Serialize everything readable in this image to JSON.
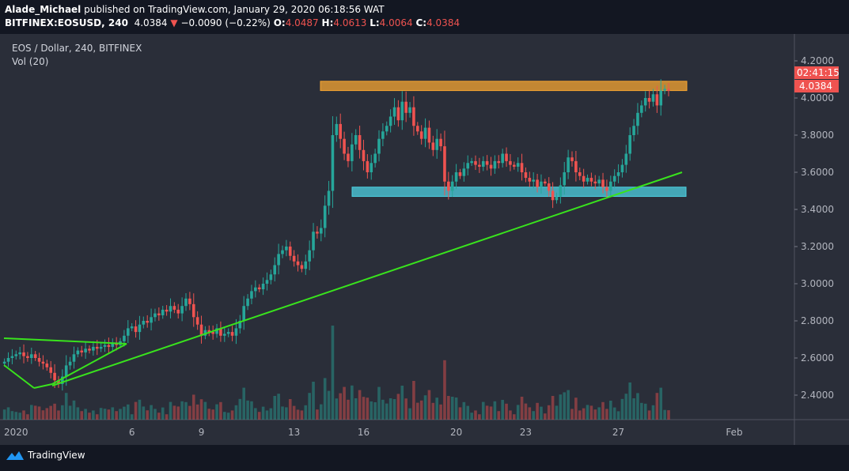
{
  "header": {
    "author": "Alade_Michael",
    "published": "published on TradingView.com, January 29, 2020 06:18:56 WAT",
    "symbol": "BITFINEX:EOSUSD, 240",
    "last": "4.0384",
    "change": "−0.0090 (−0.22%)",
    "o_label": "O:",
    "o": "4.0487",
    "h_label": "H:",
    "h": "4.0613",
    "l_label": "L:",
    "l": "4.0064",
    "c_label": "C:",
    "c": "4.0384"
  },
  "legend": {
    "title": "EOS / Dollar, 240, BITFINEX",
    "vol": "Vol (20)"
  },
  "brand": "TradingView",
  "colors": {
    "up": "#26a69a",
    "down": "#ef5350",
    "zone_top": "#f7a531",
    "zone_bottom": "#4dd0e1",
    "trend": "#39e31d",
    "bg": "#2a2e39"
  },
  "chart_data": {
    "type": "candlestick",
    "interval": "240",
    "y_ticks": [
      "4.2000",
      "4.0000",
      "3.8000",
      "3.6000",
      "3.4000",
      "3.2000",
      "3.0000",
      "2.8000",
      "2.6000",
      "2.4000"
    ],
    "ylim": [
      2.26,
      4.32
    ],
    "x_ticks": [
      {
        "label": "2020",
        "day": 1
      },
      {
        "label": "6",
        "day": 6
      },
      {
        "label": "9",
        "day": 9
      },
      {
        "label": "13",
        "day": 13
      },
      {
        "label": "16",
        "day": 16
      },
      {
        "label": "20",
        "day": 20
      },
      {
        "label": "23",
        "day": 23
      },
      {
        "label": "27",
        "day": 27
      },
      {
        "label": "Feb",
        "day": 32
      }
    ],
    "price_tag": "4.0384",
    "countdown": "02:41:15",
    "resistance_zone": [
      4.04,
      4.09
    ],
    "support_zone": [
      3.47,
      3.52
    ],
    "closes": [
      2.58,
      2.6,
      2.61,
      2.62,
      2.63,
      2.61,
      2.6,
      2.62,
      2.6,
      2.58,
      2.57,
      2.55,
      2.52,
      2.48,
      2.46,
      2.5,
      2.56,
      2.58,
      2.62,
      2.64,
      2.63,
      2.65,
      2.64,
      2.66,
      2.65,
      2.66,
      2.67,
      2.66,
      2.68,
      2.67,
      2.69,
      2.72,
      2.76,
      2.77,
      2.74,
      2.78,
      2.8,
      2.79,
      2.82,
      2.84,
      2.83,
      2.86,
      2.85,
      2.88,
      2.86,
      2.84,
      2.88,
      2.92,
      2.89,
      2.82,
      2.78,
      2.72,
      2.75,
      2.74,
      2.73,
      2.76,
      2.72,
      2.73,
      2.74,
      2.72,
      2.76,
      2.8,
      2.88,
      2.92,
      2.96,
      2.98,
      2.97,
      3.0,
      3.02,
      3.05,
      3.1,
      3.16,
      3.18,
      3.2,
      3.15,
      3.12,
      3.1,
      3.08,
      3.12,
      3.18,
      3.28,
      3.27,
      3.3,
      3.42,
      3.5,
      3.8,
      3.86,
      3.78,
      3.7,
      3.66,
      3.75,
      3.8,
      3.72,
      3.66,
      3.6,
      3.65,
      3.7,
      3.78,
      3.82,
      3.85,
      3.9,
      3.95,
      3.88,
      3.98,
      3.92,
      3.95,
      3.85,
      3.82,
      3.78,
      3.84,
      3.76,
      3.72,
      3.78,
      3.74,
      3.55,
      3.5,
      3.55,
      3.6,
      3.58,
      3.62,
      3.65,
      3.66,
      3.64,
      3.63,
      3.66,
      3.64,
      3.62,
      3.66,
      3.65,
      3.7,
      3.66,
      3.64,
      3.63,
      3.65,
      3.6,
      3.57,
      3.55,
      3.56,
      3.52,
      3.55,
      3.54,
      3.5,
      3.45,
      3.47,
      3.53,
      3.6,
      3.68,
      3.66,
      3.6,
      3.58,
      3.55,
      3.57,
      3.55,
      3.54,
      3.56,
      3.52,
      3.5,
      3.55,
      3.58,
      3.6,
      3.64,
      3.7,
      3.8,
      3.85,
      3.92,
      3.96,
      4.0,
      3.98,
      4.02,
      3.96,
      4.04,
      4.0487,
      4.0384
    ]
  }
}
